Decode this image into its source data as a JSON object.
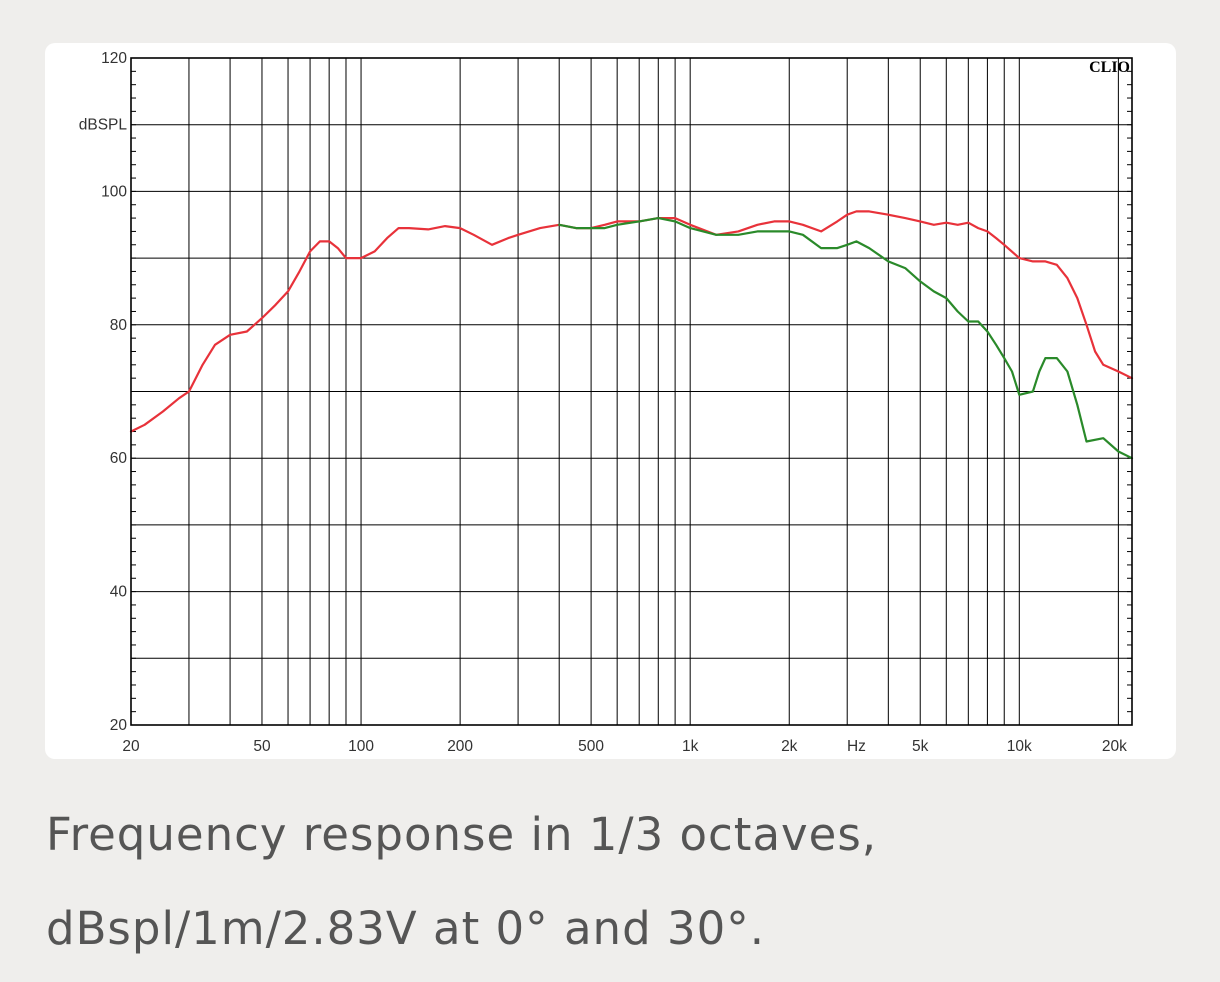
{
  "chart_data": {
    "type": "line",
    "brand": "CLIO",
    "xscale": "log",
    "xlim": [
      20,
      22000
    ],
    "ylim": [
      20,
      120
    ],
    "grid": true,
    "x_ticks": [
      {
        "label": "20",
        "value": 20
      },
      {
        "label": "50",
        "value": 50
      },
      {
        "label": "100",
        "value": 100
      },
      {
        "label": "200",
        "value": 200
      },
      {
        "label": "500",
        "value": 500
      },
      {
        "label": "1k",
        "value": 1000
      },
      {
        "label": "2k",
        "value": 2000
      },
      {
        "label": "5k",
        "value": 5000
      },
      {
        "label": "10k",
        "value": 10000
      },
      {
        "label": "20k",
        "value": 20000
      }
    ],
    "x_unit_label": "Hz",
    "x_unit_value": 3200,
    "y_ticks": [
      {
        "label": "120",
        "value": 120
      },
      {
        "label": "100",
        "value": 100
      },
      {
        "label": "80",
        "value": 80
      },
      {
        "label": "60",
        "value": 60
      },
      {
        "label": "40",
        "value": 40
      },
      {
        "label": "20",
        "value": 20
      }
    ],
    "y_unit_label": "dBSPL",
    "y_unit_value": 110,
    "series": [
      {
        "color": "#e8323a",
        "x": [
          20,
          22,
          25,
          28,
          30,
          33,
          36,
          40,
          45,
          50,
          55,
          60,
          65,
          70,
          75,
          80,
          85,
          90,
          95,
          100,
          110,
          120,
          130,
          140,
          160,
          180,
          200,
          220,
          250,
          280,
          300,
          350,
          400,
          450,
          500,
          550,
          600,
          650,
          700,
          800,
          900,
          1000,
          1200,
          1400,
          1600,
          1800,
          2000,
          2200,
          2500,
          2800,
          3000,
          3200,
          3500,
          4000,
          4500,
          5000,
          5500,
          6000,
          6500,
          7000,
          7500,
          8000,
          8500,
          9000,
          10000,
          11000,
          12000,
          13000,
          14000,
          15000,
          16000,
          17000,
          18000,
          20000,
          22000
        ],
        "y": [
          64,
          65,
          67,
          69,
          70,
          74,
          77,
          78.5,
          79,
          81,
          83,
          85,
          88,
          91,
          92.5,
          92.5,
          91.5,
          90,
          90,
          90,
          91,
          93,
          94.5,
          94.5,
          94.3,
          94.8,
          94.5,
          93.5,
          92,
          93,
          93.5,
          94.5,
          95,
          94.5,
          94.5,
          95,
          95.5,
          95.5,
          95.5,
          96,
          96,
          95,
          93.5,
          94,
          95,
          95.5,
          95.5,
          95,
          94,
          95.5,
          96.5,
          97,
          97,
          96.5,
          96,
          95.5,
          95,
          95.3,
          95,
          95.3,
          94.5,
          94,
          93,
          92,
          90,
          89.5,
          89.5,
          89,
          87,
          84,
          80,
          76,
          74,
          73,
          72
        ]
      },
      {
        "color": "#2a8a2a",
        "x": [
          400,
          450,
          500,
          550,
          600,
          700,
          800,
          900,
          1000,
          1200,
          1400,
          1600,
          1800,
          2000,
          2200,
          2500,
          2800,
          3000,
          3200,
          3500,
          4000,
          4500,
          5000,
          5500,
          6000,
          6500,
          7000,
          7500,
          8000,
          8500,
          9000,
          9500,
          10000,
          11000,
          11500,
          12000,
          13000,
          14000,
          15000,
          16000,
          18000,
          20000,
          22000
        ],
        "y": [
          95,
          94.5,
          94.5,
          94.5,
          95,
          95.5,
          96,
          95.5,
          94.5,
          93.5,
          93.5,
          94,
          94,
          94,
          93.5,
          91.5,
          91.5,
          92,
          92.5,
          91.5,
          89.5,
          88.5,
          86.5,
          85,
          84,
          82,
          80.5,
          80.5,
          79,
          77,
          75,
          73,
          69.5,
          70,
          73,
          75,
          75,
          73,
          68,
          62.5,
          63,
          61,
          60
        ]
      }
    ]
  },
  "caption": {
    "line1": "Frequency response in 1/3 octaves,",
    "line2": "dBspl/1m/2.83V at 0° and 30°."
  }
}
